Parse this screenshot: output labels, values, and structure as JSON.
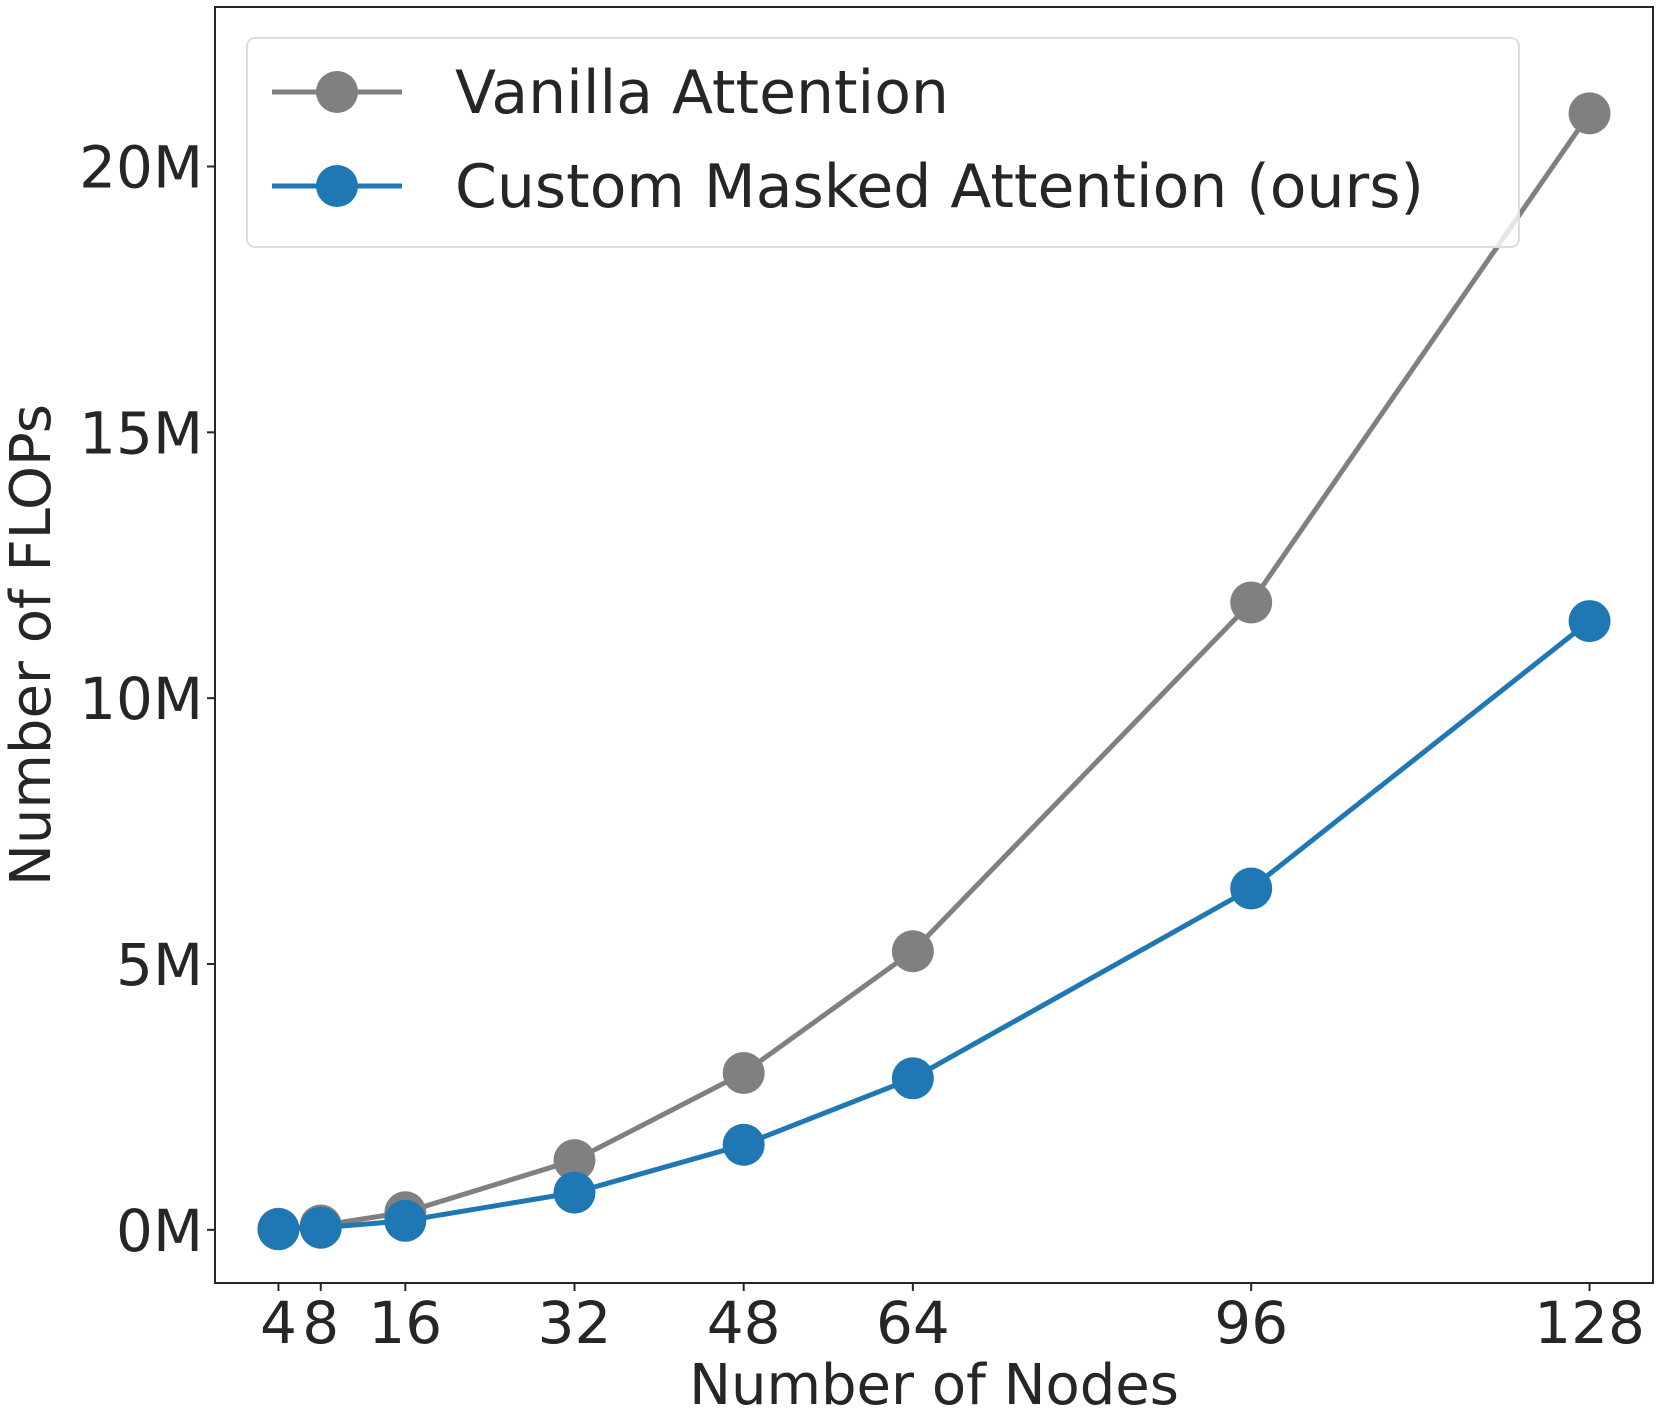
{
  "chart_data": {
    "type": "line",
    "title": "",
    "xlabel": "Number of Nodes",
    "ylabel": "Number of FLOPs",
    "x": [
      4,
      8,
      16,
      32,
      48,
      64,
      96,
      128
    ],
    "x_tick_values": [
      4,
      8,
      16,
      32,
      48,
      64,
      96,
      128
    ],
    "x_tick_labels": [
      "4",
      "8",
      "16",
      "32",
      "48",
      "64",
      "96",
      "128"
    ],
    "y_tick_values": [
      0,
      5000000,
      10000000,
      15000000,
      20000000
    ],
    "y_tick_labels": [
      "0M",
      "5M",
      "10M",
      "15M",
      "20M"
    ],
    "xlim": [
      -2,
      134
    ],
    "ylim": [
      -1000000,
      23000000
    ],
    "grid": false,
    "legend_position": "top-left",
    "series": [
      {
        "name": "Vanilla Attention",
        "color": "#808080",
        "values": [
          20000,
          82000,
          330000,
          1310000,
          2950000,
          5240000,
          11800000,
          21000000
        ]
      },
      {
        "name": "Custom Masked Attention (ours)",
        "color": "#1f77b4",
        "values": [
          10000,
          40000,
          170000,
          700000,
          1600000,
          2850000,
          6420000,
          11450000
        ]
      }
    ]
  }
}
